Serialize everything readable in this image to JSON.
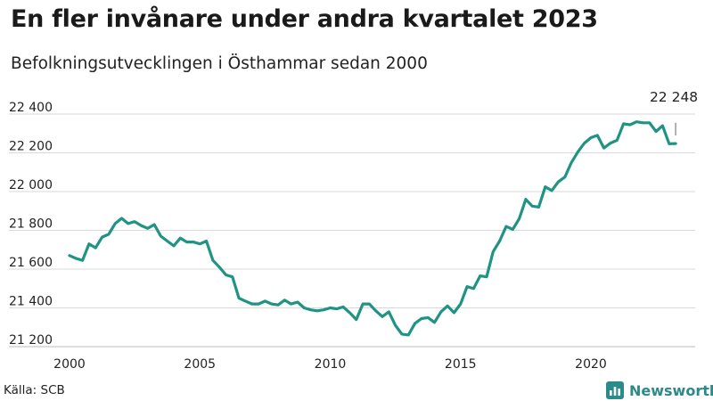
{
  "title": "En fler invånare under andra kvartalet 2023",
  "subtitle": "Befolkningsutvecklingen i Östhammar sedan 2000",
  "source": "Källa: SCB",
  "brand": "Newsworthy",
  "colors": {
    "line": "#1f9484",
    "grid": "#d9d9d9",
    "brand": "#2b8a8a"
  },
  "chart_data": {
    "type": "line",
    "title": "En fler invånare under andra kvartalet 2023",
    "subtitle": "Befolkningsutvecklingen i Östhammar sedan 2000",
    "xlabel": "",
    "ylabel": "",
    "xlim": [
      2000,
      2024
    ],
    "ylim": [
      21200,
      22400
    ],
    "x_ticks": [
      2000,
      2005,
      2010,
      2015,
      2020
    ],
    "x_tick_labels": [
      "2000",
      "2005",
      "2010",
      "2015",
      "2020"
    ],
    "y_ticks": [
      21200,
      21400,
      21600,
      21800,
      22000,
      22200,
      22400
    ],
    "y_tick_labels": [
      "21 200",
      "21 400",
      "21 600",
      "21 800",
      "22 000",
      "22 200",
      "22 400"
    ],
    "grid": "horizontal",
    "end_label": "22 248",
    "series": [
      {
        "x": [
          2000.0,
          2000.25,
          2000.5,
          2000.75,
          2001.0,
          2001.25,
          2001.5,
          2001.75,
          2002.0,
          2002.25,
          2002.5,
          2002.75,
          2003.0,
          2003.25,
          2003.5,
          2003.75,
          2004.0,
          2004.25,
          2004.5,
          2004.75,
          2005.0,
          2005.25,
          2005.5,
          2005.75,
          2006.0,
          2006.25,
          2006.5,
          2006.75,
          2007.0,
          2007.25,
          2007.5,
          2007.75,
          2008.0,
          2008.25,
          2008.5,
          2008.75,
          2009.0,
          2009.25,
          2009.5,
          2009.75,
          2010.0,
          2010.25,
          2010.5,
          2010.75,
          2011.0,
          2011.25,
          2011.5,
          2011.75,
          2012.0,
          2012.25,
          2012.5,
          2012.75,
          2013.0,
          2013.25,
          2013.5,
          2013.75,
          2014.0,
          2014.25,
          2014.5,
          2014.75,
          2015.0,
          2015.25,
          2015.5,
          2015.75,
          2016.0,
          2016.25,
          2016.5,
          2016.75,
          2017.0,
          2017.25,
          2017.5,
          2017.75,
          2018.0,
          2018.25,
          2018.5,
          2018.75,
          2019.0,
          2019.25,
          2019.5,
          2019.75,
          2020.0,
          2020.25,
          2020.5,
          2020.75,
          2021.0,
          2021.25,
          2021.5,
          2021.75,
          2022.0,
          2022.25,
          2022.5,
          2022.75,
          2023.0,
          2023.25
        ],
        "values": [
          21670,
          21655,
          21645,
          21730,
          21710,
          21765,
          21780,
          21835,
          21862,
          21835,
          21845,
          21825,
          21810,
          21830,
          21770,
          21745,
          21720,
          21760,
          21740,
          21740,
          21730,
          21745,
          21645,
          21610,
          21570,
          21560,
          21450,
          21435,
          21420,
          21420,
          21435,
          21420,
          21415,
          21440,
          21420,
          21430,
          21400,
          21390,
          21385,
          21390,
          21400,
          21395,
          21405,
          21375,
          21340,
          21420,
          21420,
          21385,
          21355,
          21380,
          21310,
          21265,
          21260,
          21320,
          21345,
          21350,
          21325,
          21380,
          21410,
          21375,
          21420,
          21510,
          21500,
          21565,
          21560,
          21690,
          21745,
          21820,
          21805,
          21860,
          21960,
          21925,
          21920,
          22025,
          22005,
          22050,
          22075,
          22150,
          22205,
          22250,
          22278,
          22290,
          22225,
          22250,
          22265,
          22350,
          22345,
          22360,
          22355,
          22355,
          22310,
          22340,
          22247,
          22248
        ]
      }
    ]
  }
}
